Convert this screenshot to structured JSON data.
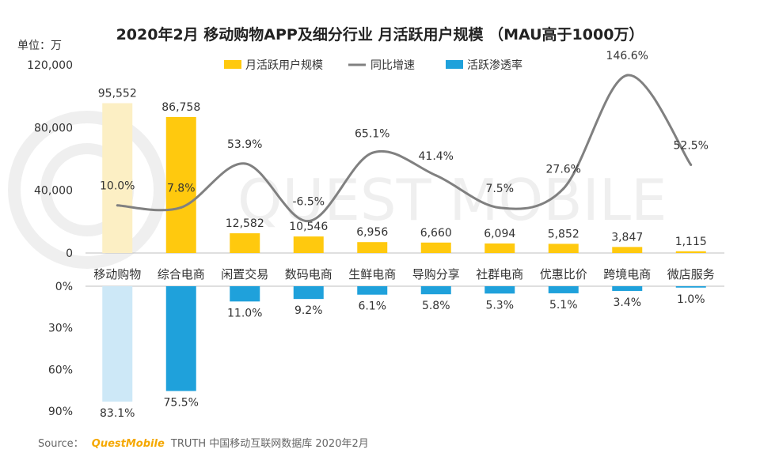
{
  "title": "2020年2月 移动购物APP及细分行业 月活跃用户规模 （MAU高于1000万）",
  "unit_label": "单位：万",
  "source": {
    "prefix": "Source：",
    "brand": "QuestMobile",
    "suffix": "TRUTH 中国移动互联网数据库 2020年2月"
  },
  "watermark": "QUEST MOBILE",
  "colors": {
    "mau_bar": "#FFC90E",
    "mau_bar_highlight": "#FCEFC4",
    "penetration_bar": "#1FA1DB",
    "penetration_bar_highlight": "#CDE8F7",
    "growth_line": "#808080",
    "axis": "#bfbfbf",
    "text": "#333333",
    "source_brand": "#F5A800"
  },
  "chart_data": {
    "type": "bar",
    "title": "2020年2月 移动购物APP及细分行业 月活跃用户规模 （MAU高于1000万）",
    "categories": [
      "移动购物",
      "综合电商",
      "闲置交易",
      "数码电商",
      "生鲜电商",
      "导购分享",
      "社群电商",
      "优惠比价",
      "跨境电商",
      "微店服务"
    ],
    "legend": [
      "月活跃用户规模",
      "同比增速",
      "活跃渗透率"
    ],
    "legend_position": "top",
    "series": [
      {
        "name": "月活跃用户规模",
        "kind": "bar",
        "values": [
          95552,
          86758,
          12582,
          10546,
          6956,
          6660,
          6094,
          5852,
          3847,
          1115
        ],
        "labels": [
          "95,552",
          "86,758",
          "12,582",
          "10,546",
          "6,956",
          "6,660",
          "6,094",
          "5,852",
          "3,847",
          "1,115"
        ]
      },
      {
        "name": "同比增速",
        "kind": "line",
        "values": [
          10.0,
          7.8,
          53.9,
          -6.5,
          65.1,
          41.4,
          7.5,
          27.6,
          146.6,
          52.5
        ],
        "labels": [
          "10.0%",
          "7.8%",
          "53.9%",
          "-6.5%",
          "65.1%",
          "41.4%",
          "7.5%",
          "27.6%",
          "146.6%",
          "52.5%"
        ]
      },
      {
        "name": "活跃渗透率",
        "kind": "bar-down",
        "values": [
          83.1,
          75.5,
          11.0,
          9.2,
          6.1,
          5.8,
          5.3,
          5.1,
          3.4,
          1.0
        ],
        "labels": [
          "83.1%",
          "75.5%",
          "11.0%",
          "9.2%",
          "6.1%",
          "5.8%",
          "5.3%",
          "5.1%",
          "3.4%",
          "1.0%"
        ]
      }
    ],
    "y_upper": {
      "range": [
        0,
        120000
      ],
      "ticks": [
        0,
        40000,
        80000,
        120000
      ],
      "tick_labels": [
        "0",
        "40,000",
        "80,000",
        "120,000"
      ]
    },
    "y_lower": {
      "range": [
        0,
        90
      ],
      "ticks": [
        0,
        30,
        60,
        90
      ],
      "tick_labels": [
        "0%",
        "30%",
        "60%",
        "90%"
      ]
    },
    "growth_scale": [
      -40,
      155
    ],
    "grid": false
  }
}
